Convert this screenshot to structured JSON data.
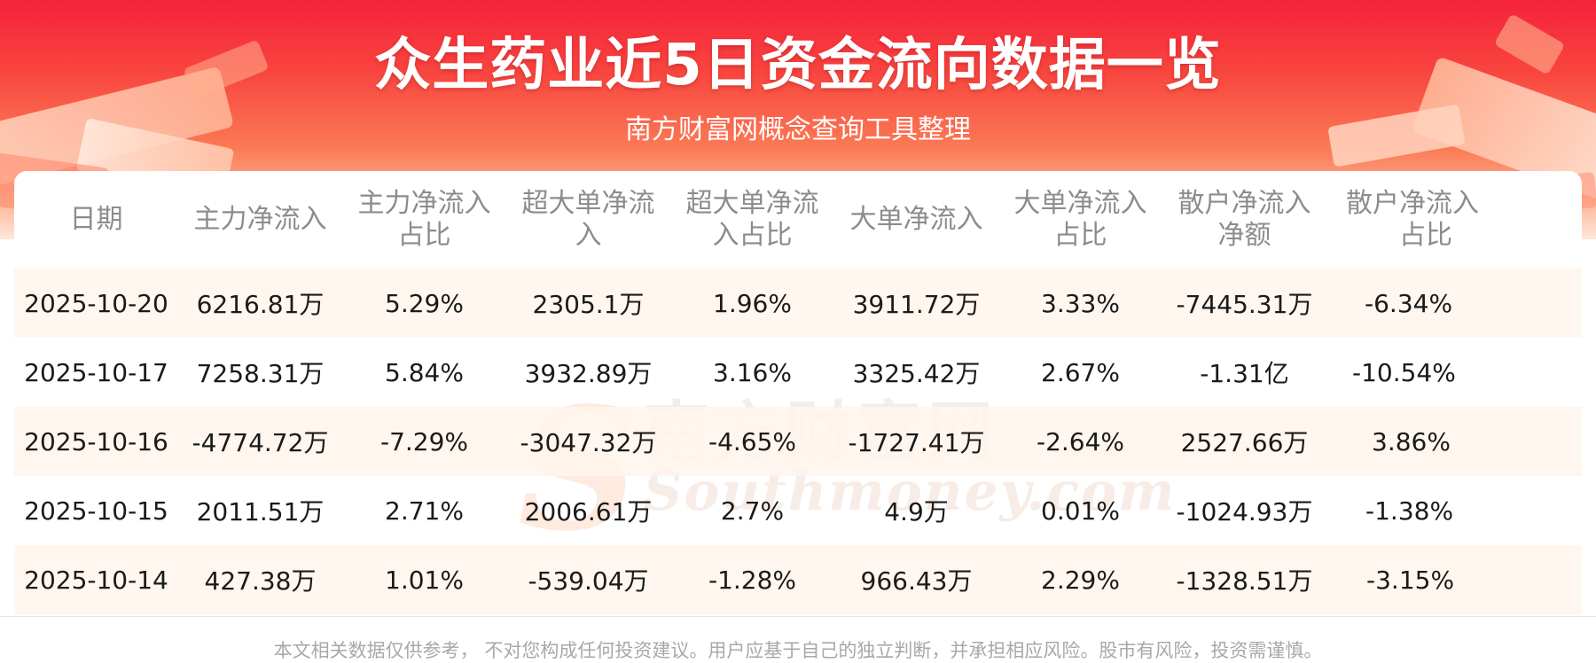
{
  "header": {
    "title": "众生药业近5日资金流向数据一览",
    "subtitle": "南方财富网概念查询工具整理"
  },
  "watermark": {
    "cn": "南方财富网",
    "en": "Southmoney.com"
  },
  "table": {
    "headers": [
      [
        "日期"
      ],
      [
        "主力净流入"
      ],
      [
        "主力净流入",
        "占比"
      ],
      [
        "超大单净流",
        "入"
      ],
      [
        "超大单净流",
        "入占比"
      ],
      [
        "大单净流入"
      ],
      [
        "大单净流入",
        "占比"
      ],
      [
        "散户净流入",
        "净额"
      ],
      [
        "散户净流入",
        "占比"
      ]
    ],
    "rows": [
      [
        "2025-10-20",
        "6216.81万",
        "5.29%",
        "2305.1万",
        "1.96%",
        "3911.72万",
        "3.33%",
        "-7445.31万",
        "-6.34%"
      ],
      [
        "2025-10-17",
        "7258.31万",
        "5.84%",
        "3932.89万",
        "3.16%",
        "3325.42万",
        "2.67%",
        "-1.31亿",
        "-10.54%"
      ],
      [
        "2025-10-16",
        "-4774.72万",
        "-7.29%",
        "-3047.32万",
        "-4.65%",
        "-1727.41万",
        "-2.64%",
        "2527.66万",
        "3.86%"
      ],
      [
        "2025-10-15",
        "2011.51万",
        "2.71%",
        "2006.61万",
        "2.7%",
        "4.9万",
        "0.01%",
        "-1024.93万",
        "-1.38%"
      ],
      [
        "2025-10-14",
        "427.38万",
        "1.01%",
        "-539.04万",
        "-1.28%",
        "966.43万",
        "2.29%",
        "-1328.51万",
        "-3.15%"
      ]
    ]
  },
  "footer": {
    "disclaimer": "本文相关数据仅供参考， 不对您构成任何投资建议。用户应基于自己的独立判断，并承担相应风险。股市有风险，投资需谨慎。"
  },
  "colors": {
    "banner_red": "#f5223b",
    "row_shade": "#fff4ec",
    "header_text": "#8c8c8c",
    "cell_text": "#1a1a1a"
  }
}
